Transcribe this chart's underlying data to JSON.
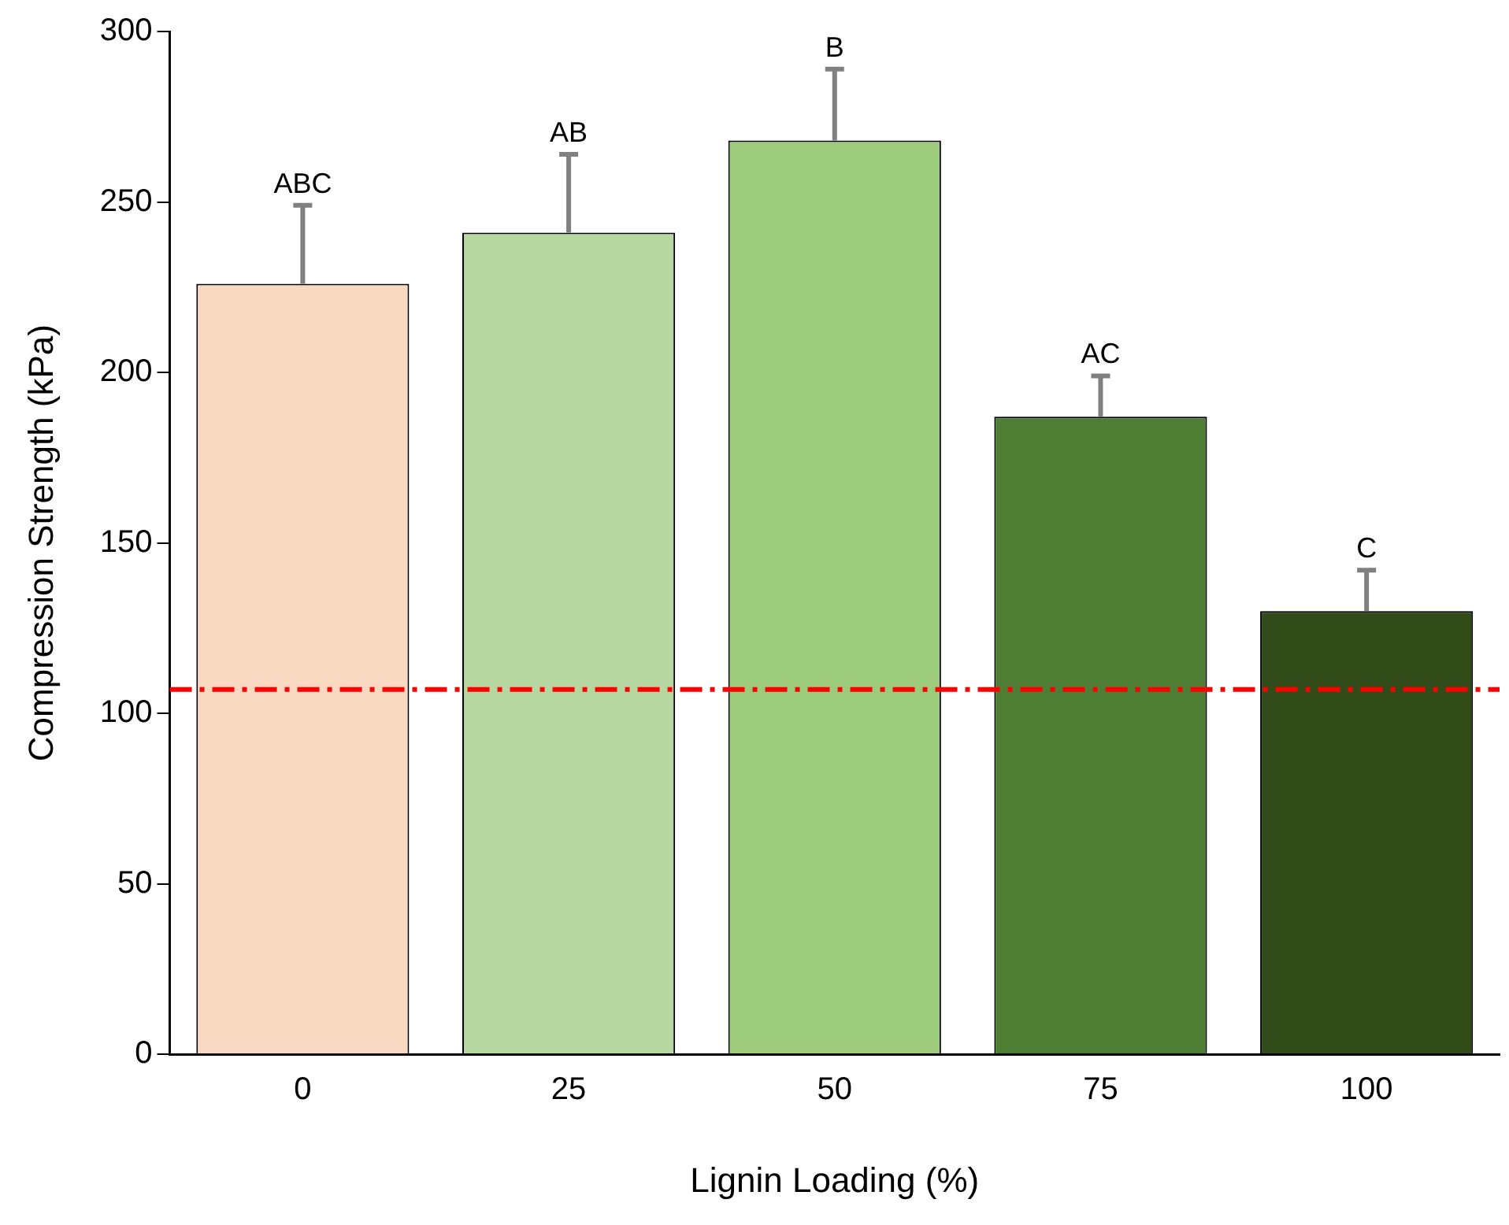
{
  "chart_data": {
    "type": "bar",
    "xlabel": "Lignin Loading (%)",
    "ylabel": "Compression Strength (kPa)",
    "categories": [
      "0",
      "25",
      "50",
      "75",
      "100"
    ],
    "values": [
      226,
      241,
      268,
      187,
      130
    ],
    "colors": [
      "#fad9c2",
      "#b6d7a0",
      "#9bcb7b",
      "#4e7d34",
      "#314c18"
    ],
    "errors": [
      [
        226,
        249
      ],
      [
        241,
        264
      ],
      [
        268,
        289
      ],
      [
        187,
        199
      ],
      [
        130,
        142
      ]
    ],
    "ylim": [
      0,
      300
    ],
    "yticks": [
      0,
      50,
      100,
      150,
      200,
      250,
      300
    ],
    "grid": false,
    "legend": false,
    "ref_lines": [
      {
        "axis": "y",
        "value": 107,
        "color": "#ff0000",
        "line_style": "dashed"
      }
    ],
    "annotations": [
      {
        "text": "ABC",
        "x": "0",
        "y": 249
      },
      {
        "text": "AB",
        "x": "25",
        "y": 264
      },
      {
        "text": "B",
        "x": "50",
        "y": 289
      },
      {
        "text": "AC",
        "x": "75",
        "y": 199
      },
      {
        "text": "C",
        "x": "100",
        "y": 142
      }
    ]
  }
}
